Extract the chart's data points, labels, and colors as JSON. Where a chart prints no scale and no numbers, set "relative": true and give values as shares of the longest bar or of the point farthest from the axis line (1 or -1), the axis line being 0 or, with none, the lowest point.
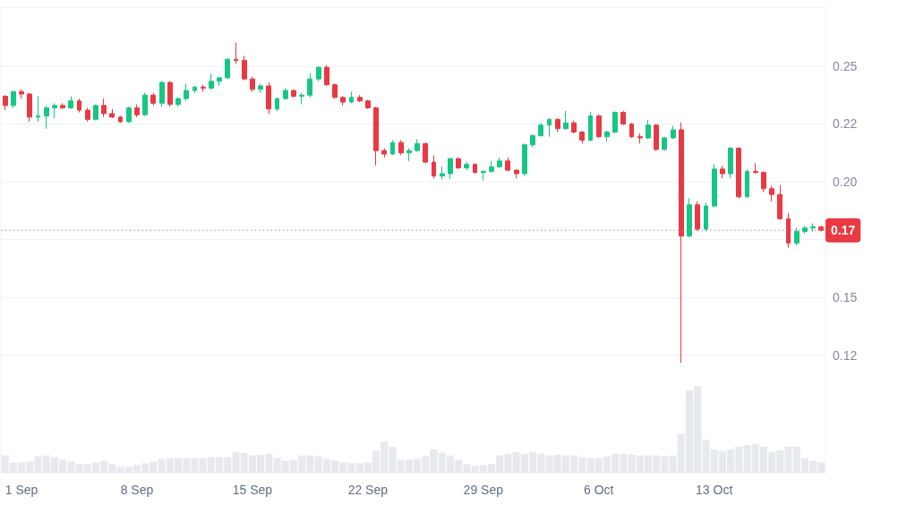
{
  "chart_data": [
    {
      "type": "candlestick",
      "categories": [
        null,
        null,
        "1 Sep",
        null,
        null,
        null,
        null,
        null,
        null,
        null,
        null,
        null,
        null,
        null,
        null,
        null,
        "8 Sep",
        null,
        null,
        null,
        null,
        null,
        null,
        null,
        null,
        null,
        null,
        null,
        null,
        null,
        "15 Sep",
        null,
        null,
        null,
        null,
        null,
        null,
        null,
        null,
        null,
        null,
        null,
        null,
        null,
        "22 Sep",
        null,
        null,
        null,
        null,
        null,
        null,
        null,
        null,
        null,
        null,
        null,
        null,
        null,
        "29 Sep",
        null,
        null,
        null,
        null,
        null,
        null,
        null,
        null,
        null,
        null,
        null,
        null,
        null,
        "6 Oct",
        null,
        null,
        null,
        null,
        null,
        null,
        null,
        null,
        null,
        null,
        null,
        null,
        null,
        "13 Oct",
        null,
        null,
        null,
        null,
        null,
        null,
        null,
        null,
        null,
        null,
        null,
        null,
        null
      ],
      "ohlc": [
        [
          0.237,
          0.2375,
          0.231,
          0.233
        ],
        [
          0.233,
          0.2395,
          0.232,
          0.239
        ],
        [
          0.239,
          0.24,
          0.236,
          0.238
        ],
        [
          0.238,
          0.2385,
          0.226,
          0.228
        ],
        [
          0.228,
          0.237,
          0.226,
          0.2285
        ],
        [
          0.2285,
          0.233,
          0.223,
          0.232
        ],
        [
          0.232,
          0.234,
          0.2275,
          0.233
        ],
        [
          0.233,
          0.234,
          0.2315,
          0.232
        ],
        [
          0.232,
          0.237,
          0.2315,
          0.235
        ],
        [
          0.235,
          0.236,
          0.23,
          0.231
        ],
        [
          0.231,
          0.232,
          0.226,
          0.227
        ],
        [
          0.227,
          0.2335,
          0.2265,
          0.233
        ],
        [
          0.233,
          0.236,
          0.228,
          0.2295
        ],
        [
          0.2295,
          0.2315,
          0.2275,
          0.228
        ],
        [
          0.228,
          0.2285,
          0.2255,
          0.226
        ],
        [
          0.226,
          0.2325,
          0.2255,
          0.232
        ],
        [
          0.232,
          0.2335,
          0.228,
          0.229
        ],
        [
          0.229,
          0.2385,
          0.2285,
          0.2375
        ],
        [
          0.2375,
          0.2385,
          0.233,
          0.234
        ],
        [
          0.234,
          0.2435,
          0.2325,
          0.243
        ],
        [
          0.243,
          0.2435,
          0.2325,
          0.2335
        ],
        [
          0.2335,
          0.2365,
          0.2325,
          0.236
        ],
        [
          0.236,
          0.2425,
          0.235,
          0.2395
        ],
        [
          0.2395,
          0.2415,
          0.2385,
          0.241
        ],
        [
          0.241,
          0.242,
          0.239,
          0.2405
        ],
        [
          0.2405,
          0.2468,
          0.24,
          0.2435
        ],
        [
          0.2435,
          0.2455,
          0.2415,
          0.245
        ],
        [
          0.245,
          0.2535,
          0.2445,
          0.253
        ],
        [
          0.253,
          0.2603,
          0.251,
          0.2525
        ],
        [
          0.2525,
          0.2545,
          0.244,
          0.2445
        ],
        [
          0.2445,
          0.2455,
          0.239,
          0.24
        ],
        [
          0.24,
          0.2425,
          0.2385,
          0.2415
        ],
        [
          0.2415,
          0.243,
          0.2293,
          0.2315
        ],
        [
          0.2315,
          0.2365,
          0.2305,
          0.236
        ],
        [
          0.236,
          0.2405,
          0.2355,
          0.2395
        ],
        [
          0.2395,
          0.24,
          0.2365,
          0.237
        ],
        [
          0.237,
          0.2385,
          0.2335,
          0.2375
        ],
        [
          0.2375,
          0.247,
          0.2365,
          0.2445
        ],
        [
          0.2445,
          0.25,
          0.2435,
          0.2495
        ],
        [
          0.2495,
          0.2505,
          0.2415,
          0.242
        ],
        [
          0.242,
          0.2425,
          0.236,
          0.2365
        ],
        [
          0.2365,
          0.237,
          0.233,
          0.2345
        ],
        [
          0.2345,
          0.239,
          0.234,
          0.2365
        ],
        [
          0.2365,
          0.2375,
          0.2345,
          0.235
        ],
        [
          0.235,
          0.2355,
          0.2315,
          0.232
        ],
        [
          0.232,
          0.2325,
          0.207,
          0.2135
        ],
        [
          0.2135,
          0.2145,
          0.2105,
          0.212
        ],
        [
          0.212,
          0.218,
          0.2115,
          0.217
        ],
        [
          0.217,
          0.218,
          0.2115,
          0.2125
        ],
        [
          0.2125,
          0.2145,
          0.209,
          0.2135
        ],
        [
          0.2135,
          0.2185,
          0.213,
          0.2165
        ],
        [
          0.2165,
          0.217,
          0.208,
          0.2085
        ],
        [
          0.2085,
          0.2115,
          0.2015,
          0.2025
        ],
        [
          0.2025,
          0.2065,
          0.201,
          0.2035
        ],
        [
          0.2035,
          0.2105,
          0.2012,
          0.21
        ],
        [
          0.21,
          0.2105,
          0.2055,
          0.206
        ],
        [
          0.206,
          0.2085,
          0.205,
          0.2075
        ],
        [
          0.2075,
          0.208,
          0.2035,
          0.204
        ],
        [
          0.204,
          0.205,
          0.2005,
          0.2045
        ],
        [
          0.2045,
          0.209,
          0.204,
          0.2065
        ],
        [
          0.2065,
          0.2105,
          0.206,
          0.209
        ],
        [
          0.209,
          0.2105,
          0.2045,
          0.205
        ],
        [
          0.205,
          0.2055,
          0.2015,
          0.2035
        ],
        [
          0.2035,
          0.2165,
          0.2025,
          0.216
        ],
        [
          0.216,
          0.2205,
          0.215,
          0.22
        ],
        [
          0.22,
          0.2255,
          0.2195,
          0.2245
        ],
        [
          0.2245,
          0.2275,
          0.2195,
          0.227
        ],
        [
          0.227,
          0.2275,
          0.2215,
          0.223
        ],
        [
          0.223,
          0.2306,
          0.2225,
          0.2255
        ],
        [
          0.2255,
          0.2265,
          0.221,
          0.2215
        ],
        [
          0.2215,
          0.222,
          0.2165,
          0.218
        ],
        [
          0.218,
          0.2303,
          0.2175,
          0.2285
        ],
        [
          0.2285,
          0.229,
          0.219,
          0.2195
        ],
        [
          0.2195,
          0.2222,
          0.2175,
          0.2215
        ],
        [
          0.2215,
          0.2305,
          0.221,
          0.23
        ],
        [
          0.23,
          0.2307,
          0.2245,
          0.225
        ],
        [
          0.225,
          0.2255,
          0.219,
          0.2195
        ],
        [
          0.2195,
          0.221,
          0.2165,
          0.219
        ],
        [
          0.219,
          0.2268,
          0.2185,
          0.2245
        ],
        [
          0.2245,
          0.225,
          0.2134,
          0.214
        ],
        [
          0.214,
          0.2195,
          0.2135,
          0.219
        ],
        [
          0.219,
          0.2242,
          0.2185,
          0.2225
        ],
        [
          0.2225,
          0.2257,
          0.1217,
          0.1765
        ],
        [
          0.1765,
          0.1928,
          0.176,
          0.19
        ],
        [
          0.19,
          0.1915,
          0.1786,
          0.1795
        ],
        [
          0.1795,
          0.191,
          0.1786,
          0.1895
        ],
        [
          0.1895,
          0.2076,
          0.189,
          0.2055
        ],
        [
          0.2055,
          0.207,
          0.2015,
          0.2035
        ],
        [
          0.2035,
          0.215,
          0.2015,
          0.2145
        ],
        [
          0.2145,
          0.215,
          0.1928,
          0.1935
        ],
        [
          0.1935,
          0.2055,
          0.193,
          0.2045
        ],
        [
          0.2045,
          0.208,
          0.2035,
          0.204
        ],
        [
          0.204,
          0.2045,
          0.1955,
          0.197
        ],
        [
          0.197,
          0.1985,
          0.1915,
          0.1945
        ],
        [
          0.1945,
          0.1985,
          0.1835,
          0.184
        ],
        [
          0.184,
          0.1865,
          0.1714,
          0.1735
        ],
        [
          0.1735,
          0.18,
          0.1725,
          0.1785
        ],
        [
          0.1785,
          0.1808,
          0.1775,
          0.18
        ],
        [
          0.18,
          0.182,
          0.1785,
          0.1805
        ],
        [
          0.1805,
          0.181,
          0.1785,
          0.179
        ]
      ],
      "ylim": [
        0.074,
        0.2755
      ],
      "yticks": [
        {
          "value": 0.125,
          "label": "0.12"
        },
        0.15,
        {
          "value": 0.175,
          "label": null
        },
        {
          "value": 0.2,
          "label": "0.20"
        },
        {
          "value": 0.225,
          "label": "0.22"
        },
        0.25
      ],
      "grid": "y",
      "ref_lines": [
        {
          "axis": "y",
          "value": 0.179,
          "line_style": "dotted"
        }
      ],
      "annotations": [
        {
          "text": "0.17",
          "y": 0.179
        }
      ]
    },
    {
      "type": "bar",
      "relative": true,
      "categories": [
        null,
        null,
        null,
        null,
        null,
        null,
        null,
        null,
        null,
        null,
        null,
        null,
        null,
        null,
        null,
        null,
        null,
        null,
        null,
        null,
        null,
        null,
        null,
        null,
        null,
        null,
        null,
        null,
        null,
        null,
        null,
        null,
        null,
        null,
        null,
        null,
        null,
        null,
        null,
        null,
        null,
        null,
        null,
        null,
        null,
        null,
        null,
        null,
        null,
        null,
        null,
        null,
        null,
        null,
        null,
        null,
        null,
        null,
        null,
        null,
        null,
        null,
        null,
        null,
        null,
        null,
        null,
        null,
        null,
        null,
        null,
        null,
        null,
        null,
        null,
        null,
        null,
        null,
        null,
        null,
        null,
        null,
        null,
        null,
        null,
        null,
        null,
        null,
        null,
        null,
        null,
        null,
        null,
        null,
        null,
        null,
        null,
        null,
        null,
        null
      ],
      "values": [
        0.2,
        0.12,
        0.12,
        0.13,
        0.19,
        0.2,
        0.18,
        0.15,
        0.13,
        0.1,
        0.1,
        0.12,
        0.14,
        0.1,
        0.07,
        0.07,
        0.09,
        0.11,
        0.13,
        0.16,
        0.17,
        0.17,
        0.17,
        0.17,
        0.17,
        0.18,
        0.18,
        0.18,
        0.24,
        0.23,
        0.2,
        0.21,
        0.22,
        0.17,
        0.14,
        0.15,
        0.2,
        0.2,
        0.19,
        0.16,
        0.14,
        0.12,
        0.11,
        0.11,
        0.12,
        0.25,
        0.36,
        0.3,
        0.15,
        0.15,
        0.16,
        0.19,
        0.27,
        0.23,
        0.2,
        0.15,
        0.1,
        0.08,
        0.09,
        0.1,
        0.2,
        0.22,
        0.24,
        0.22,
        0.24,
        0.22,
        0.2,
        0.21,
        0.2,
        0.2,
        0.18,
        0.17,
        0.17,
        0.19,
        0.22,
        0.22,
        0.21,
        0.2,
        0.2,
        0.2,
        0.19,
        0.2,
        0.45,
        0.95,
        1,
        0.38,
        0.27,
        0.25,
        0.27,
        0.3,
        0.32,
        0.33,
        0.3,
        0.24,
        0.26,
        0.3,
        0.3,
        0.17,
        0.14,
        0.12
      ],
      "color": "#e6e9ee"
    }
  ]
}
